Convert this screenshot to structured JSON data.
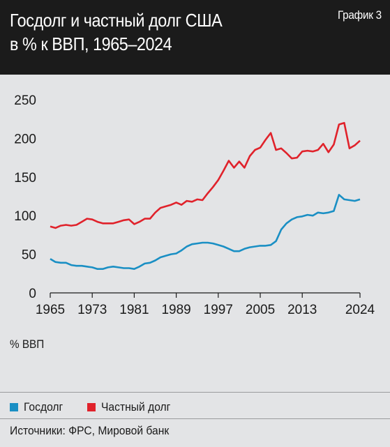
{
  "header": {
    "title_line1": "Госдолг и частный долг США",
    "title_line2": "в % к ВВП, 1965–2024",
    "badge": "График 3"
  },
  "footer": {
    "source": "Источники: ФРС, Мировой банк"
  },
  "colors": {
    "gov": "#1a8fc4",
    "private": "#e0222b"
  },
  "chart_data": {
    "type": "line",
    "title": "Госдолг и частный долг США в % к ВВП, 1965–2024",
    "ylabel": "% ВВП",
    "xlabel": "",
    "ylim": [
      0,
      250
    ],
    "xlim": [
      1965,
      2024
    ],
    "yticks": [
      0,
      50,
      100,
      150,
      200,
      250
    ],
    "xticks": [
      1965,
      1973,
      1981,
      1989,
      1997,
      2005,
      2013,
      2024
    ],
    "legend_position": "bottom",
    "grid": false,
    "x": [
      1965,
      1966,
      1967,
      1968,
      1969,
      1970,
      1971,
      1972,
      1973,
      1974,
      1975,
      1976,
      1977,
      1978,
      1979,
      1980,
      1981,
      1982,
      1983,
      1984,
      1985,
      1986,
      1987,
      1988,
      1989,
      1990,
      1991,
      1992,
      1993,
      1994,
      1995,
      1996,
      1997,
      1998,
      1999,
      2000,
      2001,
      2002,
      2003,
      2004,
      2005,
      2006,
      2007,
      2008,
      2009,
      2010,
      2011,
      2012,
      2013,
      2014,
      2015,
      2016,
      2017,
      2018,
      2019,
      2020,
      2021,
      2022,
      2023,
      2024
    ],
    "series": [
      {
        "name": "Госдолг",
        "values": [
          44,
          40,
          39,
          39,
          36,
          35,
          35,
          34,
          33,
          31,
          31,
          33,
          34,
          33,
          32,
          32,
          31,
          34,
          38,
          39,
          42,
          46,
          48,
          50,
          51,
          55,
          60,
          63,
          64,
          65,
          65,
          64,
          62,
          60,
          57,
          54,
          54,
          57,
          59,
          60,
          61,
          61,
          62,
          67,
          82,
          90,
          95,
          98,
          99,
          101,
          100,
          104,
          103,
          104,
          106,
          127,
          121,
          120,
          119,
          121
        ]
      },
      {
        "name": "Частный долг",
        "values": [
          86,
          84,
          87,
          88,
          87,
          88,
          92,
          96,
          95,
          92,
          90,
          90,
          90,
          92,
          94,
          95,
          89,
          92,
          96,
          96,
          104,
          110,
          112,
          114,
          117,
          114,
          119,
          118,
          121,
          120,
          129,
          137,
          146,
          158,
          171,
          162,
          170,
          162,
          177,
          185,
          188,
          198,
          207,
          185,
          187,
          181,
          174,
          175,
          183,
          184,
          183,
          185,
          193,
          182,
          192,
          218,
          220,
          187,
          191,
          197
        ]
      }
    ]
  }
}
